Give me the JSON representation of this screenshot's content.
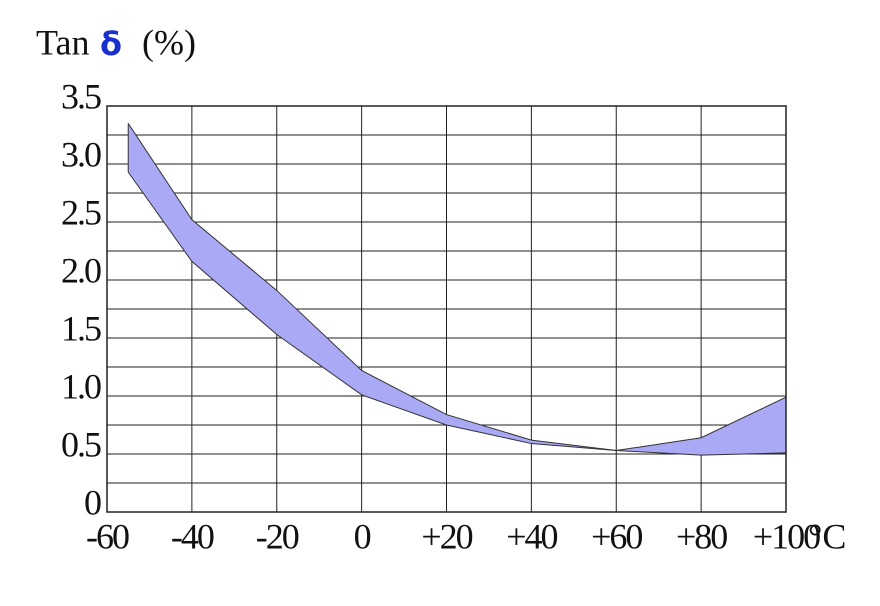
{
  "chart_data": {
    "type": "band",
    "title": "Tan",
    "title_symbol": "δ",
    "title_unit": "(%)",
    "x_unit": "°C",
    "x": [
      -55,
      -40,
      -20,
      0,
      20,
      40,
      60,
      80,
      100
    ],
    "series": [
      {
        "name": "upper",
        "color": "#a9a9f5",
        "values": [
          3.35,
          2.52,
          1.91,
          1.22,
          0.84,
          0.62,
          0.53,
          0.64,
          0.99
        ]
      },
      {
        "name": "lower",
        "color": "#a9a9f5",
        "values": [
          2.93,
          2.16,
          1.53,
          1.01,
          0.75,
          0.59,
          0.53,
          0.49,
          0.51
        ]
      }
    ],
    "xlim": [
      -60,
      100
    ],
    "xticks": [
      -60,
      -40,
      -20,
      0,
      {
        "value": 20,
        "label": "+20"
      },
      {
        "value": 40,
        "label": "+40"
      },
      {
        "value": 60,
        "label": "+60"
      },
      {
        "value": 80,
        "label": "+80"
      },
      {
        "value": 100,
        "label": "+100"
      }
    ],
    "ylim": [
      0,
      3.5
    ],
    "yticks": [
      0,
      0.5,
      {
        "value": 1,
        "label": "1.0"
      },
      1.5,
      {
        "value": 2,
        "label": "2.0"
      },
      2.5,
      {
        "value": 3,
        "label": "3.0"
      },
      3.5
    ],
    "y_minor_ticks": [
      0.25,
      0.75,
      1.25,
      1.75,
      2.25,
      2.75,
      3.25
    ],
    "grid": true
  }
}
